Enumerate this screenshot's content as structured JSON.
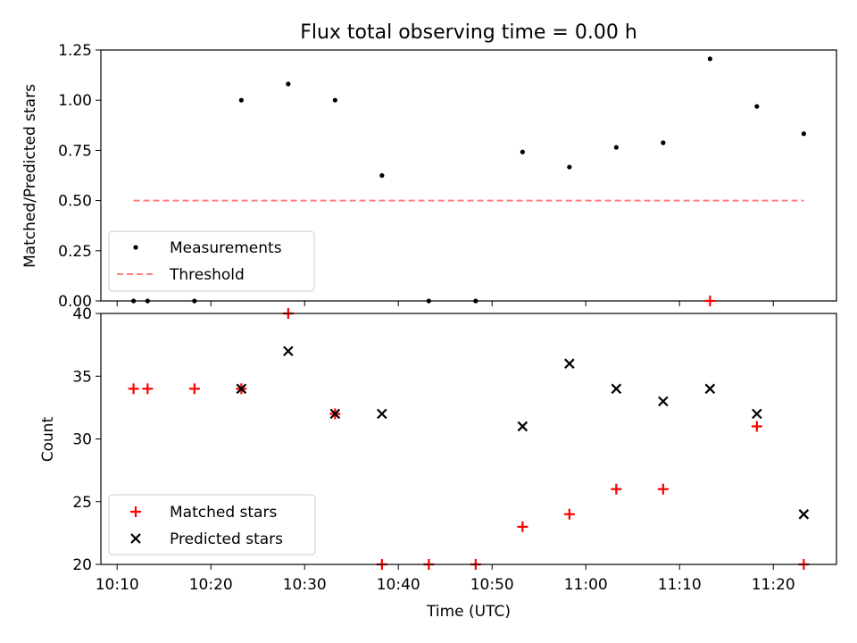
{
  "chart_data": [
    {
      "type": "scatter",
      "title": "Flux total observing time = 0.00 h",
      "xlabel": "",
      "ylabel": "Matched/Predicted stars",
      "ylim": [
        0,
        1.25
      ],
      "yticks": [
        "0.00",
        "0.25",
        "0.50",
        "0.75",
        "1.00",
        "1.25"
      ],
      "legend_position": "lower-left",
      "series": [
        {
          "name": "Measurements",
          "marker": "dot",
          "color": "#000000",
          "x": [
            "10:11:45",
            "10:13:15",
            "10:18:15",
            "10:23:15",
            "10:28:15",
            "10:33:15",
            "10:38:15",
            "10:43:15",
            "10:48:15",
            "10:53:15",
            "10:58:15",
            "11:03:15",
            "11:08:15",
            "11:13:15",
            "11:18:15",
            "11:23:15"
          ],
          "values": [
            0.0,
            0.0,
            0.0,
            1.0,
            1.081,
            1.0,
            0.625,
            0.0,
            0.0,
            0.742,
            0.667,
            0.765,
            0.788,
            1.206,
            0.969,
            0.833
          ]
        },
        {
          "name": "Threshold",
          "style": "dashed",
          "color": "#ff7f7f",
          "x": [
            "10:11:45",
            "11:23:15"
          ],
          "values": [
            0.5,
            0.5
          ]
        }
      ]
    },
    {
      "type": "scatter",
      "title": "",
      "xlabel": "Time (UTC)",
      "ylabel": "Count",
      "ylim": [
        20,
        40
      ],
      "yticks": [
        "20",
        "25",
        "30",
        "35",
        "40"
      ],
      "xticks": [
        "10:10",
        "10:20",
        "10:30",
        "10:40",
        "10:50",
        "11:00",
        "11:10",
        "11:20"
      ],
      "legend_position": "lower-left",
      "series": [
        {
          "name": "Matched stars",
          "marker": "plus",
          "color": "#ff0000",
          "x": [
            "10:11:45",
            "10:13:15",
            "10:18:15",
            "10:23:15",
            "10:28:15",
            "10:33:15",
            "10:38:15",
            "10:43:15",
            "10:48:15",
            "10:53:15",
            "10:58:15",
            "11:03:15",
            "11:08:15",
            "11:13:15",
            "11:18:15",
            "11:23:15"
          ],
          "values": [
            34,
            34,
            34,
            34,
            40,
            32,
            20,
            20,
            20,
            23,
            24,
            26,
            26,
            41,
            31,
            20
          ]
        },
        {
          "name": "Predicted stars",
          "marker": "x",
          "color": "#000000",
          "x": [
            "10:23:15",
            "10:28:15",
            "10:33:15",
            "10:38:15",
            "10:53:15",
            "10:58:15",
            "11:03:15",
            "11:08:15",
            "11:13:15",
            "11:18:15",
            "11:23:15"
          ],
          "values": [
            34,
            37,
            32,
            32,
            31,
            36,
            34,
            33,
            34,
            32,
            24
          ]
        }
      ]
    }
  ]
}
